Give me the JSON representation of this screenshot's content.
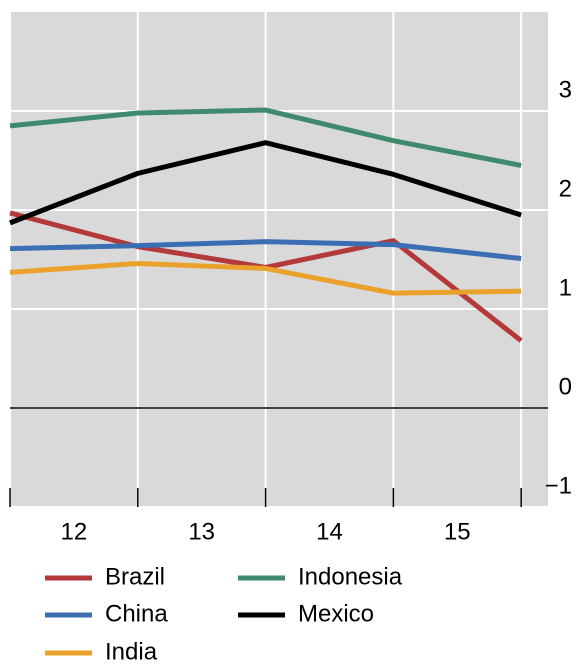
{
  "chart_data": {
    "type": "line",
    "x": [
      12,
      13,
      14,
      15,
      16
    ],
    "x_boundaries": [
      12,
      13,
      14,
      15,
      16
    ],
    "xlim": [
      12,
      16.21
    ],
    "xticks": [
      {
        "value": 12.5,
        "label": "12"
      },
      {
        "value": 13.5,
        "label": "13"
      },
      {
        "value": 14.5,
        "label": "14"
      },
      {
        "value": 15.5,
        "label": "15"
      }
    ],
    "ylim": [
      -1,
      4
    ],
    "yticks": [
      {
        "value": -1,
        "label": "−1"
      },
      0,
      1,
      2,
      3
    ],
    "grid": true,
    "series": [
      {
        "name": "Brazil",
        "color": "#b3393a",
        "values": [
          1.97,
          1.63,
          1.42,
          1.69,
          0.68
        ]
      },
      {
        "name": "China",
        "color": "#3c6eb4",
        "values": [
          1.61,
          1.64,
          1.68,
          1.65,
          1.51
        ]
      },
      {
        "name": "India",
        "color": "#eba22c",
        "values": [
          1.37,
          1.46,
          1.41,
          1.16,
          1.18
        ]
      },
      {
        "name": "Indonesia",
        "color": "#3f8a6c",
        "values": [
          2.85,
          2.98,
          3.01,
          2.7,
          2.45
        ]
      },
      {
        "name": "Mexico",
        "color": "#000000",
        "values": [
          1.87,
          2.37,
          2.68,
          2.36,
          1.95
        ]
      }
    ]
  }
}
